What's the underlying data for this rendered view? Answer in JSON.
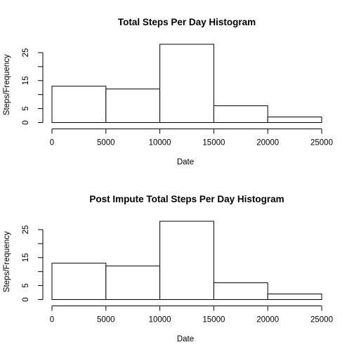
{
  "chart_data": [
    {
      "type": "bar",
      "title": "Total Steps Per Day Histogram",
      "xlabel": "Date",
      "ylabel": "Steps/Frequency",
      "bins": [
        [
          0,
          5000
        ],
        [
          5000,
          10000
        ],
        [
          10000,
          15000
        ],
        [
          15000,
          20000
        ],
        [
          20000,
          25000
        ]
      ],
      "values": [
        13,
        12,
        28,
        6,
        2
      ],
      "xticks": [
        0,
        5000,
        10000,
        15000,
        20000,
        25000
      ],
      "yticks": [
        0,
        5,
        10,
        15,
        20,
        25
      ],
      "yticks_labeled": [
        0,
        5,
        15,
        25
      ],
      "xlim": [
        0,
        25000
      ],
      "ylim": [
        0,
        28
      ],
      "grid": false
    },
    {
      "type": "bar",
      "title": "Post Impute Total Steps Per Day Histogram",
      "xlabel": "Date",
      "ylabel": "Steps/Frequency",
      "bins": [
        [
          0,
          5000
        ],
        [
          5000,
          10000
        ],
        [
          10000,
          15000
        ],
        [
          15000,
          20000
        ],
        [
          20000,
          25000
        ]
      ],
      "values": [
        13,
        12,
        28,
        6,
        2
      ],
      "xticks": [
        0,
        5000,
        10000,
        15000,
        20000,
        25000
      ],
      "yticks": [
        0,
        5,
        10,
        15,
        20,
        25
      ],
      "yticks_labeled": [
        0,
        5,
        15,
        25
      ],
      "xlim": [
        0,
        25000
      ],
      "ylim": [
        0,
        28
      ],
      "grid": false
    }
  ]
}
